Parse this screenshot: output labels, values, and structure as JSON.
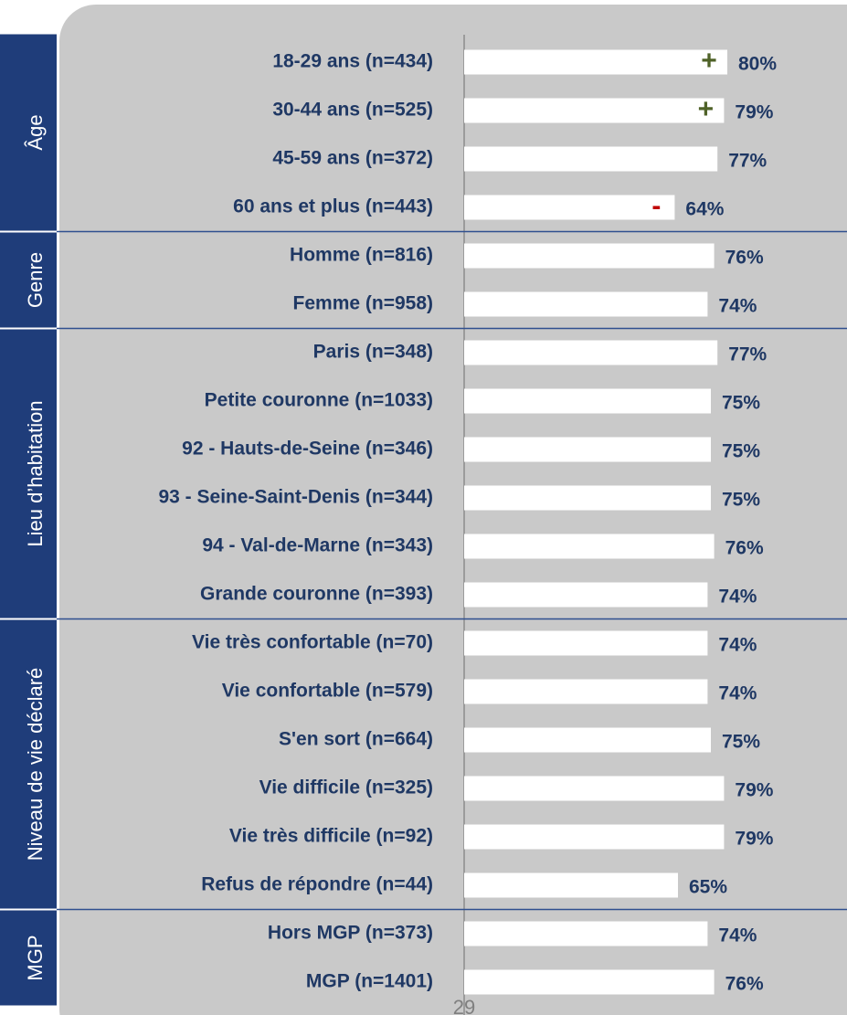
{
  "chart_data": {
    "type": "bar",
    "xlim": [
      0,
      100
    ],
    "bar_color": "#ffffff",
    "marker_colors": {
      "+": "#4f6228",
      "-": "#c00000"
    },
    "page_number": "29",
    "groups": [
      {
        "name": "Âge",
        "categories": [
          "18-29 ans (n=434)",
          "30-44 ans (n=525)",
          "45-59 ans (n=372)",
          "60 ans et plus (n=443)"
        ],
        "values": [
          80,
          79,
          77,
          64
        ],
        "value_labels": [
          "80%",
          "79%",
          "77%",
          "64%"
        ],
        "markers": [
          "+",
          "+",
          null,
          "-"
        ]
      },
      {
        "name": "Genre",
        "categories": [
          "Homme (n=816)",
          "Femme (n=958)"
        ],
        "values": [
          76,
          74
        ],
        "value_labels": [
          "76%",
          "74%"
        ]
      },
      {
        "name": "Lieu d’habitation",
        "categories": [
          "Paris (n=348)",
          "Petite couronne (n=1033)",
          "92 - Hauts-de-Seine (n=346)",
          "93 - Seine-Saint-Denis (n=344)",
          "94 - Val-de-Marne (n=343)",
          "Grande couronne (n=393)"
        ],
        "values": [
          77,
          75,
          75,
          75,
          76,
          74
        ],
        "value_labels": [
          "77%",
          "75%",
          "75%",
          "75%",
          "76%",
          "74%"
        ]
      },
      {
        "name": "Niveau de vie déclaré",
        "categories": [
          "Vie très confortable (n=70)",
          "Vie confortable (n=579)",
          "S'en sort (n=664)",
          "Vie difficile (n=325)",
          "Vie très difficile (n=92)",
          "Refus de répondre (n=44)"
        ],
        "values": [
          74,
          74,
          75,
          79,
          79,
          65
        ],
        "value_labels": [
          "74%",
          "74%",
          "75%",
          "79%",
          "79%",
          "65%"
        ]
      },
      {
        "name": "MGP",
        "categories": [
          "Hors MGP (n=373)",
          "MGP (n=1401)"
        ],
        "values": [
          74,
          76
        ],
        "value_labels": [
          "74%",
          "76%"
        ]
      }
    ]
  }
}
